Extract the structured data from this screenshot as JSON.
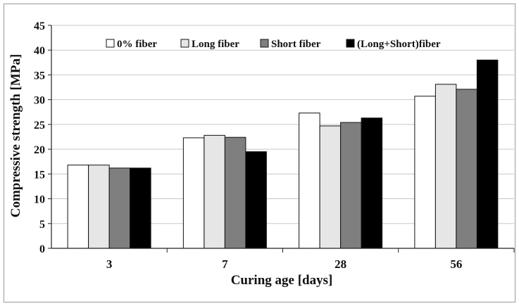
{
  "chart_data": {
    "type": "bar",
    "title": "",
    "xlabel": "Curing age [days]",
    "ylabel": "Compressive strength [MPa]",
    "ylim": [
      0,
      45
    ],
    "yticks": [
      "0",
      "5",
      "10",
      "15",
      "20",
      "25",
      "30",
      "35",
      "40",
      "45"
    ],
    "categories": [
      "3",
      "7",
      "28",
      "56"
    ],
    "grid": "horizontal",
    "legend_position": "top",
    "series": [
      {
        "name": "0% fiber",
        "color": "#ffffff",
        "values": [
          16.8,
          22.3,
          27.3,
          30.7
        ]
      },
      {
        "name": "Long fiber",
        "color": "#e6e6e6",
        "values": [
          16.8,
          22.8,
          24.7,
          33.1
        ]
      },
      {
        "name": "Short fiber",
        "color": "#7f7f7f",
        "values": [
          16.2,
          22.4,
          25.4,
          32.1
        ]
      },
      {
        "name": "(Long+Short)fiber",
        "color": "#000000",
        "values": [
          16.2,
          19.5,
          26.3,
          38.0
        ]
      }
    ]
  }
}
